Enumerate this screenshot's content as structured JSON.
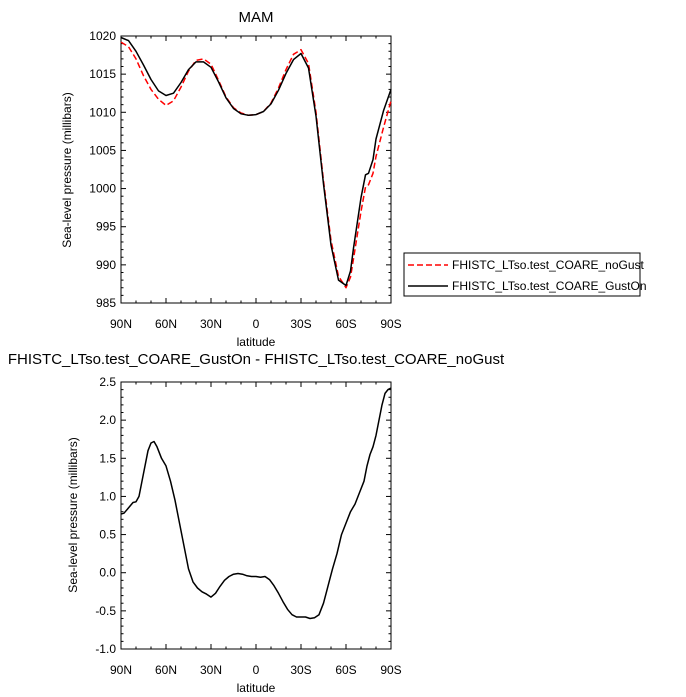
{
  "chart_data": [
    {
      "type": "line",
      "title": "MAM",
      "xlabel": "latitude",
      "ylabel": "Sea-level pressure (millibars)",
      "xlim": [
        90,
        -90
      ],
      "ylim": [
        985,
        1020
      ],
      "x_ticks": [
        90,
        60,
        30,
        0,
        -30,
        -60,
        -90
      ],
      "x_tick_labels": [
        "90N",
        "60N",
        "30N",
        "0",
        "30S",
        "60S",
        "90S"
      ],
      "y_ticks": [
        985,
        990,
        995,
        1000,
        1005,
        1010,
        1015,
        1020
      ],
      "y_tick_labels": [
        "985",
        "990",
        "995",
        "1000",
        "1005",
        "1010",
        "1015",
        "1020"
      ],
      "legend": {
        "placement": "right"
      },
      "series": [
        {
          "name": "FHISTC_LTso.test_COARE_noGust",
          "color": "#ff0000",
          "dash": "dashed",
          "x": [
            90,
            85,
            80,
            75,
            70,
            65,
            60,
            55,
            50,
            45,
            40,
            35,
            30,
            25,
            20,
            15,
            10,
            5,
            0,
            -5,
            -10,
            -15,
            -20,
            -25,
            -30,
            -35,
            -40,
            -45,
            -50,
            -55,
            -60,
            -63,
            -65,
            -70,
            -73,
            -75,
            -78,
            -80,
            -85,
            -90
          ],
          "y": [
            1019.2,
            1018.6,
            1017.0,
            1014.8,
            1013.0,
            1011.7,
            1010.9,
            1011.5,
            1013.3,
            1015.4,
            1016.8,
            1017.0,
            1016.3,
            1014.2,
            1012.0,
            1010.6,
            1009.9,
            1009.6,
            1009.7,
            1010.1,
            1011.2,
            1013.2,
            1015.6,
            1017.6,
            1018.2,
            1016.4,
            1010.0,
            1001.0,
            993.2,
            988.5,
            987.0,
            988.4,
            990.8,
            997.0,
            1000.2,
            1000.5,
            1002.0,
            1004.2,
            1008.0,
            1011.5
          ]
        },
        {
          "name": "FHISTC_LTso.test_COARE_GustOn",
          "color": "#000000",
          "dash": "solid",
          "x": [
            90,
            85,
            80,
            75,
            70,
            65,
            60,
            55,
            50,
            45,
            40,
            35,
            30,
            25,
            20,
            15,
            10,
            5,
            0,
            -5,
            -10,
            -15,
            -20,
            -25,
            -30,
            -35,
            -40,
            -45,
            -50,
            -55,
            -60,
            -63,
            -65,
            -70,
            -73,
            -75,
            -78,
            -80,
            -85,
            -90
          ],
          "y": [
            1019.8,
            1019.4,
            1018.0,
            1016.2,
            1014.3,
            1012.8,
            1012.2,
            1012.5,
            1013.9,
            1015.6,
            1016.6,
            1016.6,
            1015.9,
            1014.0,
            1011.9,
            1010.5,
            1009.8,
            1009.6,
            1009.7,
            1010.1,
            1011.1,
            1012.9,
            1015.1,
            1016.9,
            1017.7,
            1015.8,
            1009.5,
            1000.6,
            992.6,
            988.0,
            987.3,
            989.2,
            992.2,
            998.8,
            1001.8,
            1002.0,
            1003.8,
            1006.5,
            1010.2,
            1013.0
          ]
        }
      ]
    },
    {
      "type": "line",
      "title": "FHISTC_LTso.test_COARE_GustOn - FHISTC_LTso.test_COARE_noGust",
      "xlabel": "latitude",
      "ylabel": "Sea-level pressure (millibars)",
      "xlim": [
        90,
        -90
      ],
      "ylim": [
        -1.0,
        2.5
      ],
      "x_ticks": [
        90,
        60,
        30,
        0,
        -30,
        -60,
        -90
      ],
      "x_tick_labels": [
        "90N",
        "60N",
        "30N",
        "0",
        "30S",
        "60S",
        "90S"
      ],
      "y_ticks": [
        -1.0,
        -0.5,
        0.0,
        0.5,
        1.0,
        1.5,
        2.0,
        2.5
      ],
      "y_tick_labels": [
        "-1.0",
        "-0.5",
        "0.0",
        "0.5",
        "1.0",
        "1.5",
        "2.0",
        "2.5"
      ],
      "series": [
        {
          "color": "#000000",
          "dash": "solid",
          "x": [
            90,
            88,
            85,
            82,
            80,
            78,
            75,
            72,
            70,
            68,
            66,
            63,
            60,
            57,
            54,
            51,
            48,
            45,
            42,
            39,
            36,
            33,
            30,
            27,
            24,
            21,
            18,
            15,
            12,
            9,
            6,
            3,
            0,
            -3,
            -6,
            -9,
            -12,
            -15,
            -18,
            -21,
            -24,
            -27,
            -30,
            -33,
            -36,
            -39,
            -42,
            -45,
            -47,
            -49,
            -51,
            -54,
            -57,
            -60,
            -63,
            -66,
            -69,
            -72,
            -74,
            -76,
            -78,
            -80,
            -82,
            -84,
            -86,
            -88,
            -90
          ],
          "y": [
            0.77,
            0.78,
            0.85,
            0.92,
            0.93,
            1.0,
            1.3,
            1.6,
            1.7,
            1.72,
            1.65,
            1.5,
            1.4,
            1.2,
            0.95,
            0.65,
            0.35,
            0.05,
            -0.12,
            -0.2,
            -0.25,
            -0.28,
            -0.32,
            -0.27,
            -0.18,
            -0.1,
            -0.05,
            -0.02,
            -0.01,
            -0.02,
            -0.04,
            -0.05,
            -0.05,
            -0.06,
            -0.05,
            -0.09,
            -0.17,
            -0.27,
            -0.38,
            -0.48,
            -0.55,
            -0.58,
            -0.58,
            -0.58,
            -0.6,
            -0.59,
            -0.55,
            -0.4,
            -0.25,
            -0.1,
            0.05,
            0.25,
            0.5,
            0.65,
            0.8,
            0.9,
            1.05,
            1.2,
            1.4,
            1.55,
            1.65,
            1.8,
            2.0,
            2.2,
            2.35,
            2.4,
            2.42
          ]
        }
      ]
    }
  ]
}
